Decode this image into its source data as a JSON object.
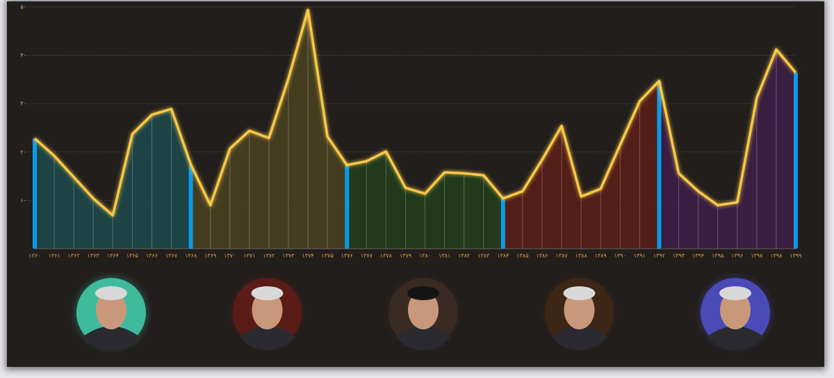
{
  "chart_data": {
    "type": "line",
    "categories": [
      "۱۳۶۰",
      "۱۳۶۱",
      "۱۳۶۲",
      "۱۳۶۳",
      "۱۳۶۴",
      "۱۳۶۵",
      "۱۳۶۶",
      "۱۳۶۷",
      "۱۳۶۸",
      "۱۳۶۹",
      "۱۳۷۰",
      "۱۳۷۱",
      "۱۳۷۲",
      "۱۳۷۳",
      "۱۳۷۴",
      "۱۳۷۵",
      "۱۳۷۶",
      "۱۳۷۷",
      "۱۳۷۸",
      "۱۳۷۹",
      "۱۳۸۰",
      "۱۳۸۱",
      "۱۳۸۲",
      "۱۳۸۳",
      "۱۳۸۴",
      "۱۳۸۵",
      "۱۳۸۶",
      "۱۳۸۷",
      "۱۳۸۸",
      "۱۳۸۹",
      "۱۳۹۰",
      "۱۳۹۱",
      "۱۳۹۲",
      "۱۳۹۳",
      "۱۳۹۴",
      "۱۳۹۵",
      "۱۳۹۶",
      "۱۳۹۷",
      "۱۳۹۸",
      "۱۳۹۹"
    ],
    "values": [
      22.8,
      19.2,
      14.8,
      10.4,
      6.9,
      23.7,
      27.7,
      28.9,
      17.4,
      9,
      20.7,
      24.4,
      22.9,
      35.2,
      49.4,
      23.2,
      17.3,
      18.1,
      20.1,
      12.6,
      11.4,
      15.8,
      15.6,
      15.2,
      10.4,
      11.9,
      18.4,
      25.4,
      10.8,
      12.4,
      21.5,
      30.5,
      34.7,
      15.6,
      11.9,
      9,
      9.6,
      31.2,
      41.2,
      36.4
    ],
    "color": "#f7c948",
    "marker_color": "#0a9be8",
    "eras": [
      {
        "from": 0,
        "to": 8,
        "color": "#1c4a4c",
        "portrait": "#3dbb9c"
      },
      {
        "from": 8,
        "to": 16,
        "color": "#4a4220",
        "portrait": "#5a1c16"
      },
      {
        "from": 16,
        "to": 24,
        "color": "#22401c",
        "portrait": "#3a2a22"
      },
      {
        "from": 24,
        "to": 32,
        "color": "#5a1e16",
        "portrait": "#3c2616"
      },
      {
        "from": 32,
        "to": 39,
        "color": "#3e1e48",
        "portrait": "#4a4ab8"
      }
    ],
    "ylim": [
      0,
      50
    ],
    "yticks": [
      {
        "value": 10,
        "label": "۱۰"
      },
      {
        "value": 20,
        "label": "۲۰"
      },
      {
        "value": 30,
        "label": "۳۰"
      },
      {
        "value": 40,
        "label": "۴۰"
      },
      {
        "value": 50,
        "label": "۵۰"
      }
    ],
    "grid": true
  }
}
